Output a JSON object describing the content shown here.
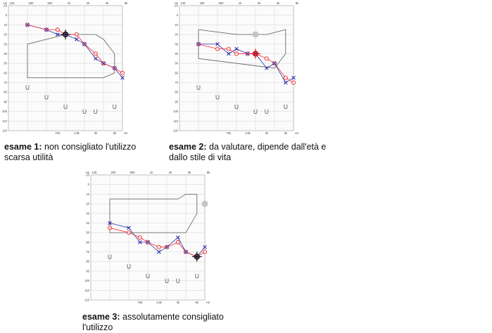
{
  "charts_meta": {
    "x_freq_top": [
      "125",
      "250",
      "500",
      "1k",
      "2k",
      "4k",
      "8k"
    ],
    "x_freq_bottom": [
      "750",
      "1.5k",
      "3k",
      "6k"
    ],
    "x_unit_top": "Hz",
    "x_unit_bottom": "Hz",
    "y_ticks": [
      "-10",
      "0",
      "10",
      "20",
      "30",
      "40",
      "50",
      "60",
      "70",
      "80",
      "90",
      "100",
      "110",
      "120"
    ],
    "colors": {
      "grid": "#d3d3d3",
      "frame": "#9a9a9a",
      "zone": "#6b6b6b",
      "right_ear": "#ee2a2a",
      "left_ear": "#2b2fb0",
      "bone": "#555555",
      "marker_gray": "#c4c4c4",
      "cursor": "#111111",
      "cursor_red": "#e01010"
    }
  },
  "captions": [
    {
      "label": "esame 1:",
      "text": " non consigliato l'utilizzo scarsa utilità"
    },
    {
      "label": "esame 2:",
      "text": " da valutare, dipende dall'età e dallo stile di vita"
    },
    {
      "label": "esame 3:",
      "text": " assolutamente consigliato l'utilizzo"
    }
  ],
  "chart_data": [
    {
      "type": "line",
      "x": [
        "250",
        "500",
        "750",
        "1k",
        "1.5k",
        "2k",
        "3k",
        "4k",
        "6k",
        "8k"
      ],
      "ylim": [
        -10,
        120
      ],
      "y_inverted": true,
      "grid": true,
      "series": [
        {
          "marker": "circle",
          "values": [
            10,
            15,
            15,
            20,
            20,
            30,
            40,
            50,
            55,
            60
          ]
        },
        {
          "marker": "x",
          "values": [
            10,
            15,
            20,
            20,
            25,
            30,
            45,
            50,
            55,
            65
          ]
        }
      ],
      "bone_conduction": {
        "x": [
          "250",
          "500",
          "1k",
          "2k",
          "3k",
          "6k"
        ],
        "values": [
          75,
          85,
          95,
          100,
          100,
          95
        ]
      },
      "speech_zone": [
        [
          250,
          30
        ],
        [
          1000,
          20
        ],
        [
          3000,
          20
        ],
        [
          4000,
          25
        ],
        [
          6000,
          40
        ],
        [
          6000,
          60
        ],
        [
          4000,
          65
        ],
        [
          250,
          65
        ]
      ],
      "cursor_marker": {
        "x": "1k",
        "value": 20,
        "color": "black"
      },
      "gray_marker": null
    },
    {
      "type": "line",
      "x": [
        "250",
        "500",
        "750",
        "1k",
        "1.5k",
        "2k",
        "3k",
        "4k",
        "6k",
        "8k"
      ],
      "ylim": [
        -10,
        120
      ],
      "y_inverted": true,
      "grid": true,
      "series": [
        {
          "marker": "circle",
          "values": [
            30,
            35,
            35,
            40,
            40,
            40,
            45,
            50,
            65,
            70
          ]
        },
        {
          "marker": "x",
          "values": [
            30,
            30,
            40,
            35,
            40,
            40,
            55,
            50,
            70,
            65
          ]
        }
      ],
      "bone_conduction": {
        "x": [
          "250",
          "500",
          "1k",
          "2k",
          "3k",
          "6k"
        ],
        "values": [
          75,
          85,
          95,
          100,
          100,
          95
        ]
      },
      "speech_zone": [
        [
          250,
          15
        ],
        [
          1000,
          20
        ],
        [
          3000,
          20
        ],
        [
          6000,
          15
        ],
        [
          6000,
          40
        ],
        [
          4000,
          55
        ],
        [
          250,
          45
        ]
      ],
      "cursor_marker": {
        "x": "2k",
        "value": 40,
        "color": "red"
      },
      "gray_marker": {
        "x": "2k",
        "value": 20
      }
    },
    {
      "type": "line",
      "x": [
        "250",
        "500",
        "750",
        "1k",
        "1.5k",
        "2k",
        "3k",
        "4k",
        "6k",
        "8k"
      ],
      "ylim": [
        -10,
        120
      ],
      "y_inverted": true,
      "grid": true,
      "series": [
        {
          "marker": "circle",
          "values": [
            45,
            50,
            55,
            60,
            65,
            65,
            60,
            70,
            75,
            70
          ]
        },
        {
          "marker": "x",
          "values": [
            40,
            45,
            60,
            60,
            70,
            65,
            55,
            70,
            75,
            65
          ]
        }
      ],
      "bone_conduction": {
        "x": [
          "250",
          "500",
          "1k",
          "2k",
          "3k",
          "6k"
        ],
        "values": [
          75,
          85,
          95,
          100,
          100,
          95
        ]
      },
      "speech_zone": [
        [
          250,
          15
        ],
        [
          1000,
          15
        ],
        [
          3000,
          15
        ],
        [
          4000,
          10
        ],
        [
          6000,
          10
        ],
        [
          6000,
          30
        ],
        [
          4000,
          50
        ],
        [
          250,
          50
        ]
      ],
      "cursor_marker": {
        "x": "6k",
        "value": 75,
        "color": "black"
      },
      "gray_marker": {
        "x": "8k",
        "value": 20
      }
    }
  ]
}
